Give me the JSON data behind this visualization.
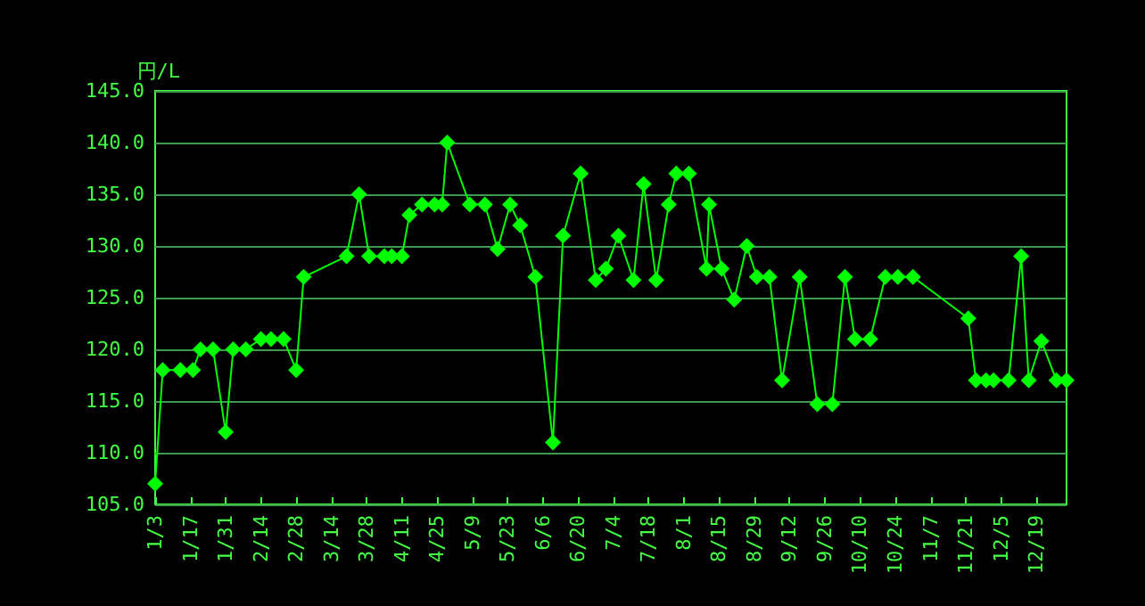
{
  "chart_data": {
    "type": "line",
    "ylabel": "円/L",
    "x": [
      "--01-03",
      "--01-06",
      "--01-13",
      "--01-18",
      "--01-21",
      "--01-26",
      "--01-31",
      "--02-03",
      "--02-08",
      "--02-14",
      "--02-18",
      "--02-23",
      "--02-28",
      "--03-03",
      "--03-20",
      "--03-25",
      "--03-29",
      "--04-04",
      "--04-07",
      "--04-11",
      "--04-14",
      "--04-19",
      "--04-24",
      "--04-27",
      "--04-29",
      "--05-08",
      "--05-14",
      "--05-19",
      "--05-24",
      "--05-28",
      "--06-03",
      "--06-10",
      "--06-14",
      "--06-21",
      "--06-27",
      "--07-01",
      "--07-06",
      "--07-12",
      "--07-16",
      "--07-21",
      "--07-26",
      "--07-29",
      "--08-03",
      "--08-10",
      "--08-11",
      "--08-16",
      "--08-21",
      "--08-26",
      "--08-30",
      "--09-04",
      "--09-09",
      "--09-16",
      "--09-23",
      "--09-29",
      "--10-04",
      "--10-08",
      "--10-14",
      "--10-20",
      "--10-25",
      "--10-31",
      "--11-22",
      "--11-25",
      "--11-29",
      "--12-02",
      "--12-08",
      "--12-13",
      "--12-16",
      "--12-21",
      "--12-27",
      "--12-31"
    ],
    "series": [
      {
        "color": "#00ff00",
        "values": [
          107,
          118,
          118,
          118,
          120,
          120,
          112,
          120,
          120,
          121,
          121,
          121,
          118,
          127,
          129,
          135,
          129,
          129,
          129,
          129,
          133,
          134,
          134,
          134,
          140,
          134,
          134,
          129.7,
          134,
          132,
          127,
          111,
          131,
          137,
          126.7,
          127.8,
          131,
          126.7,
          136,
          126.7,
          134,
          137,
          137,
          127.8,
          134,
          127.8,
          124.8,
          130,
          127,
          127,
          117,
          127,
          114.7,
          114.7,
          127,
          121,
          121,
          127,
          127,
          127,
          123,
          117,
          117,
          117,
          117,
          129,
          117,
          120.8,
          117,
          117
        ]
      }
    ],
    "xlim": [
      "--01-03",
      "--12-31"
    ],
    "xticks": [
      {
        "value": "--01-03",
        "label": "1/3"
      },
      {
        "value": "--01-17",
        "label": "1/17"
      },
      {
        "value": "--01-31",
        "label": "1/31"
      },
      {
        "value": "--02-14",
        "label": "2/14"
      },
      {
        "value": "--02-28",
        "label": "2/28"
      },
      {
        "value": "--03-14",
        "label": "3/14"
      },
      {
        "value": "--03-28",
        "label": "3/28"
      },
      {
        "value": "--04-11",
        "label": "4/11"
      },
      {
        "value": "--04-25",
        "label": "4/25"
      },
      {
        "value": "--05-09",
        "label": "5/9"
      },
      {
        "value": "--05-23",
        "label": "5/23"
      },
      {
        "value": "--06-06",
        "label": "6/6"
      },
      {
        "value": "--06-20",
        "label": "6/20"
      },
      {
        "value": "--07-04",
        "label": "7/4"
      },
      {
        "value": "--07-18",
        "label": "7/18"
      },
      {
        "value": "--08-01",
        "label": "8/1"
      },
      {
        "value": "--08-15",
        "label": "8/15"
      },
      {
        "value": "--08-29",
        "label": "8/29"
      },
      {
        "value": "--09-12",
        "label": "9/12"
      },
      {
        "value": "--09-26",
        "label": "9/26"
      },
      {
        "value": "--10-10",
        "label": "10/10"
      },
      {
        "value": "--10-24",
        "label": "10/24"
      },
      {
        "value": "--11-07",
        "label": "11/7"
      },
      {
        "value": "--11-21",
        "label": "11/21"
      },
      {
        "value": "--12-05",
        "label": "12/5"
      },
      {
        "value": "--12-19",
        "label": "12/19"
      }
    ],
    "ylim": [
      105,
      145
    ],
    "yticks": [
      {
        "value": 105,
        "label": "105.0"
      },
      {
        "value": 110,
        "label": "110.0"
      },
      {
        "value": 115,
        "label": "115.0"
      },
      {
        "value": 120,
        "label": "120.0"
      },
      {
        "value": 125,
        "label": "125.0"
      },
      {
        "value": 130,
        "label": "130.0"
      },
      {
        "value": 135,
        "label": "135.0"
      },
      {
        "value": 140,
        "label": "140.0"
      },
      {
        "value": 145,
        "label": "145.0"
      }
    ],
    "grid": "y",
    "marker": "diamond",
    "line_style": "solid"
  }
}
